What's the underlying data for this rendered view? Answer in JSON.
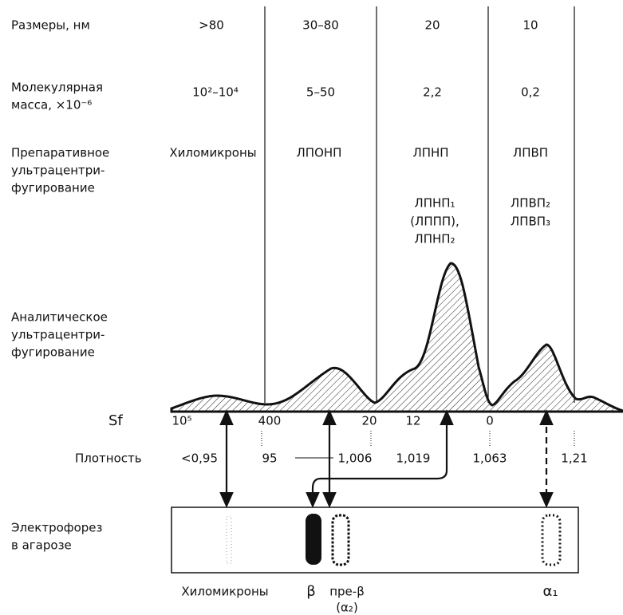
{
  "row_labels": {
    "size": "Размеры, нм",
    "mass": [
      "Молекулярная",
      "масса, ×10⁻⁶"
    ],
    "prep": [
      "Препаративное",
      "ультрацентри-",
      "фугирование"
    ],
    "analytic": [
      "Аналитическое",
      "ультрацентри-",
      "фугирование"
    ],
    "sf": "Sf",
    "density": "Плотность",
    "electro": [
      "Электрофорез",
      "в агарозе"
    ]
  },
  "sizes": [
    ">80",
    "30–80",
    "20",
    "10"
  ],
  "masses": [
    "10²–10⁴",
    "5–50",
    "2,2",
    "0,2"
  ],
  "prep_classes": [
    "Хиломикроны",
    "ЛПОНП",
    "ЛПНП",
    "ЛПВП"
  ],
  "subclasses": {
    "ldl": [
      "ЛПНП₁",
      "(ЛППП),",
      "ЛПНП₂"
    ],
    "hdl": [
      "ЛПВП₂",
      "ЛПВП₃"
    ]
  },
  "sf_scale": [
    "10⁵",
    "400",
    "20",
    "12",
    "0"
  ],
  "density": [
    "<0,95",
    "95",
    "1,006",
    "1,019",
    "1,063",
    "1,21"
  ],
  "bands": [
    "Хиломикроны",
    "β",
    "пре-β",
    "(α₂)",
    "α₁"
  ]
}
